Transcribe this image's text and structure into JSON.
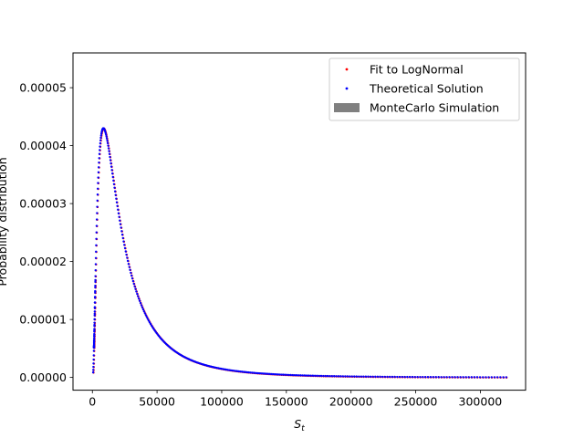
{
  "chart_data": {
    "type": "scatter",
    "title": "",
    "xlabel": "S",
    "xlabel_subscript": "t",
    "ylabel": "Probability distribution",
    "xlim": [
      -15000,
      335000
    ],
    "ylim": [
      -2.2e-06,
      5.6e-05
    ],
    "xticks": [
      0,
      50000,
      100000,
      150000,
      200000,
      250000,
      300000
    ],
    "xtick_labels": [
      "0",
      "50000",
      "100000",
      "150000",
      "200000",
      "250000",
      "300000"
    ],
    "yticks": [
      0,
      1e-05,
      2e-05,
      3e-05,
      4e-05,
      5e-05
    ],
    "ytick_labels": [
      "0.00000",
      "0.00001",
      "0.00002",
      "0.00003",
      "0.00004",
      "0.00005"
    ],
    "grid": false,
    "legend_position": "top-right",
    "lognormal": {
      "mode": 8500,
      "sigma": 0.95,
      "peak_density": 4.3e-05
    },
    "series": [
      {
        "name": "Fit to LogNormal",
        "kind": "points",
        "color": "#ff0000"
      },
      {
        "name": "Theoretical Solution",
        "kind": "points",
        "color": "#0000ff"
      },
      {
        "name": "MonteCarlo Simulation",
        "kind": "histogram",
        "color": "#808080"
      }
    ]
  }
}
